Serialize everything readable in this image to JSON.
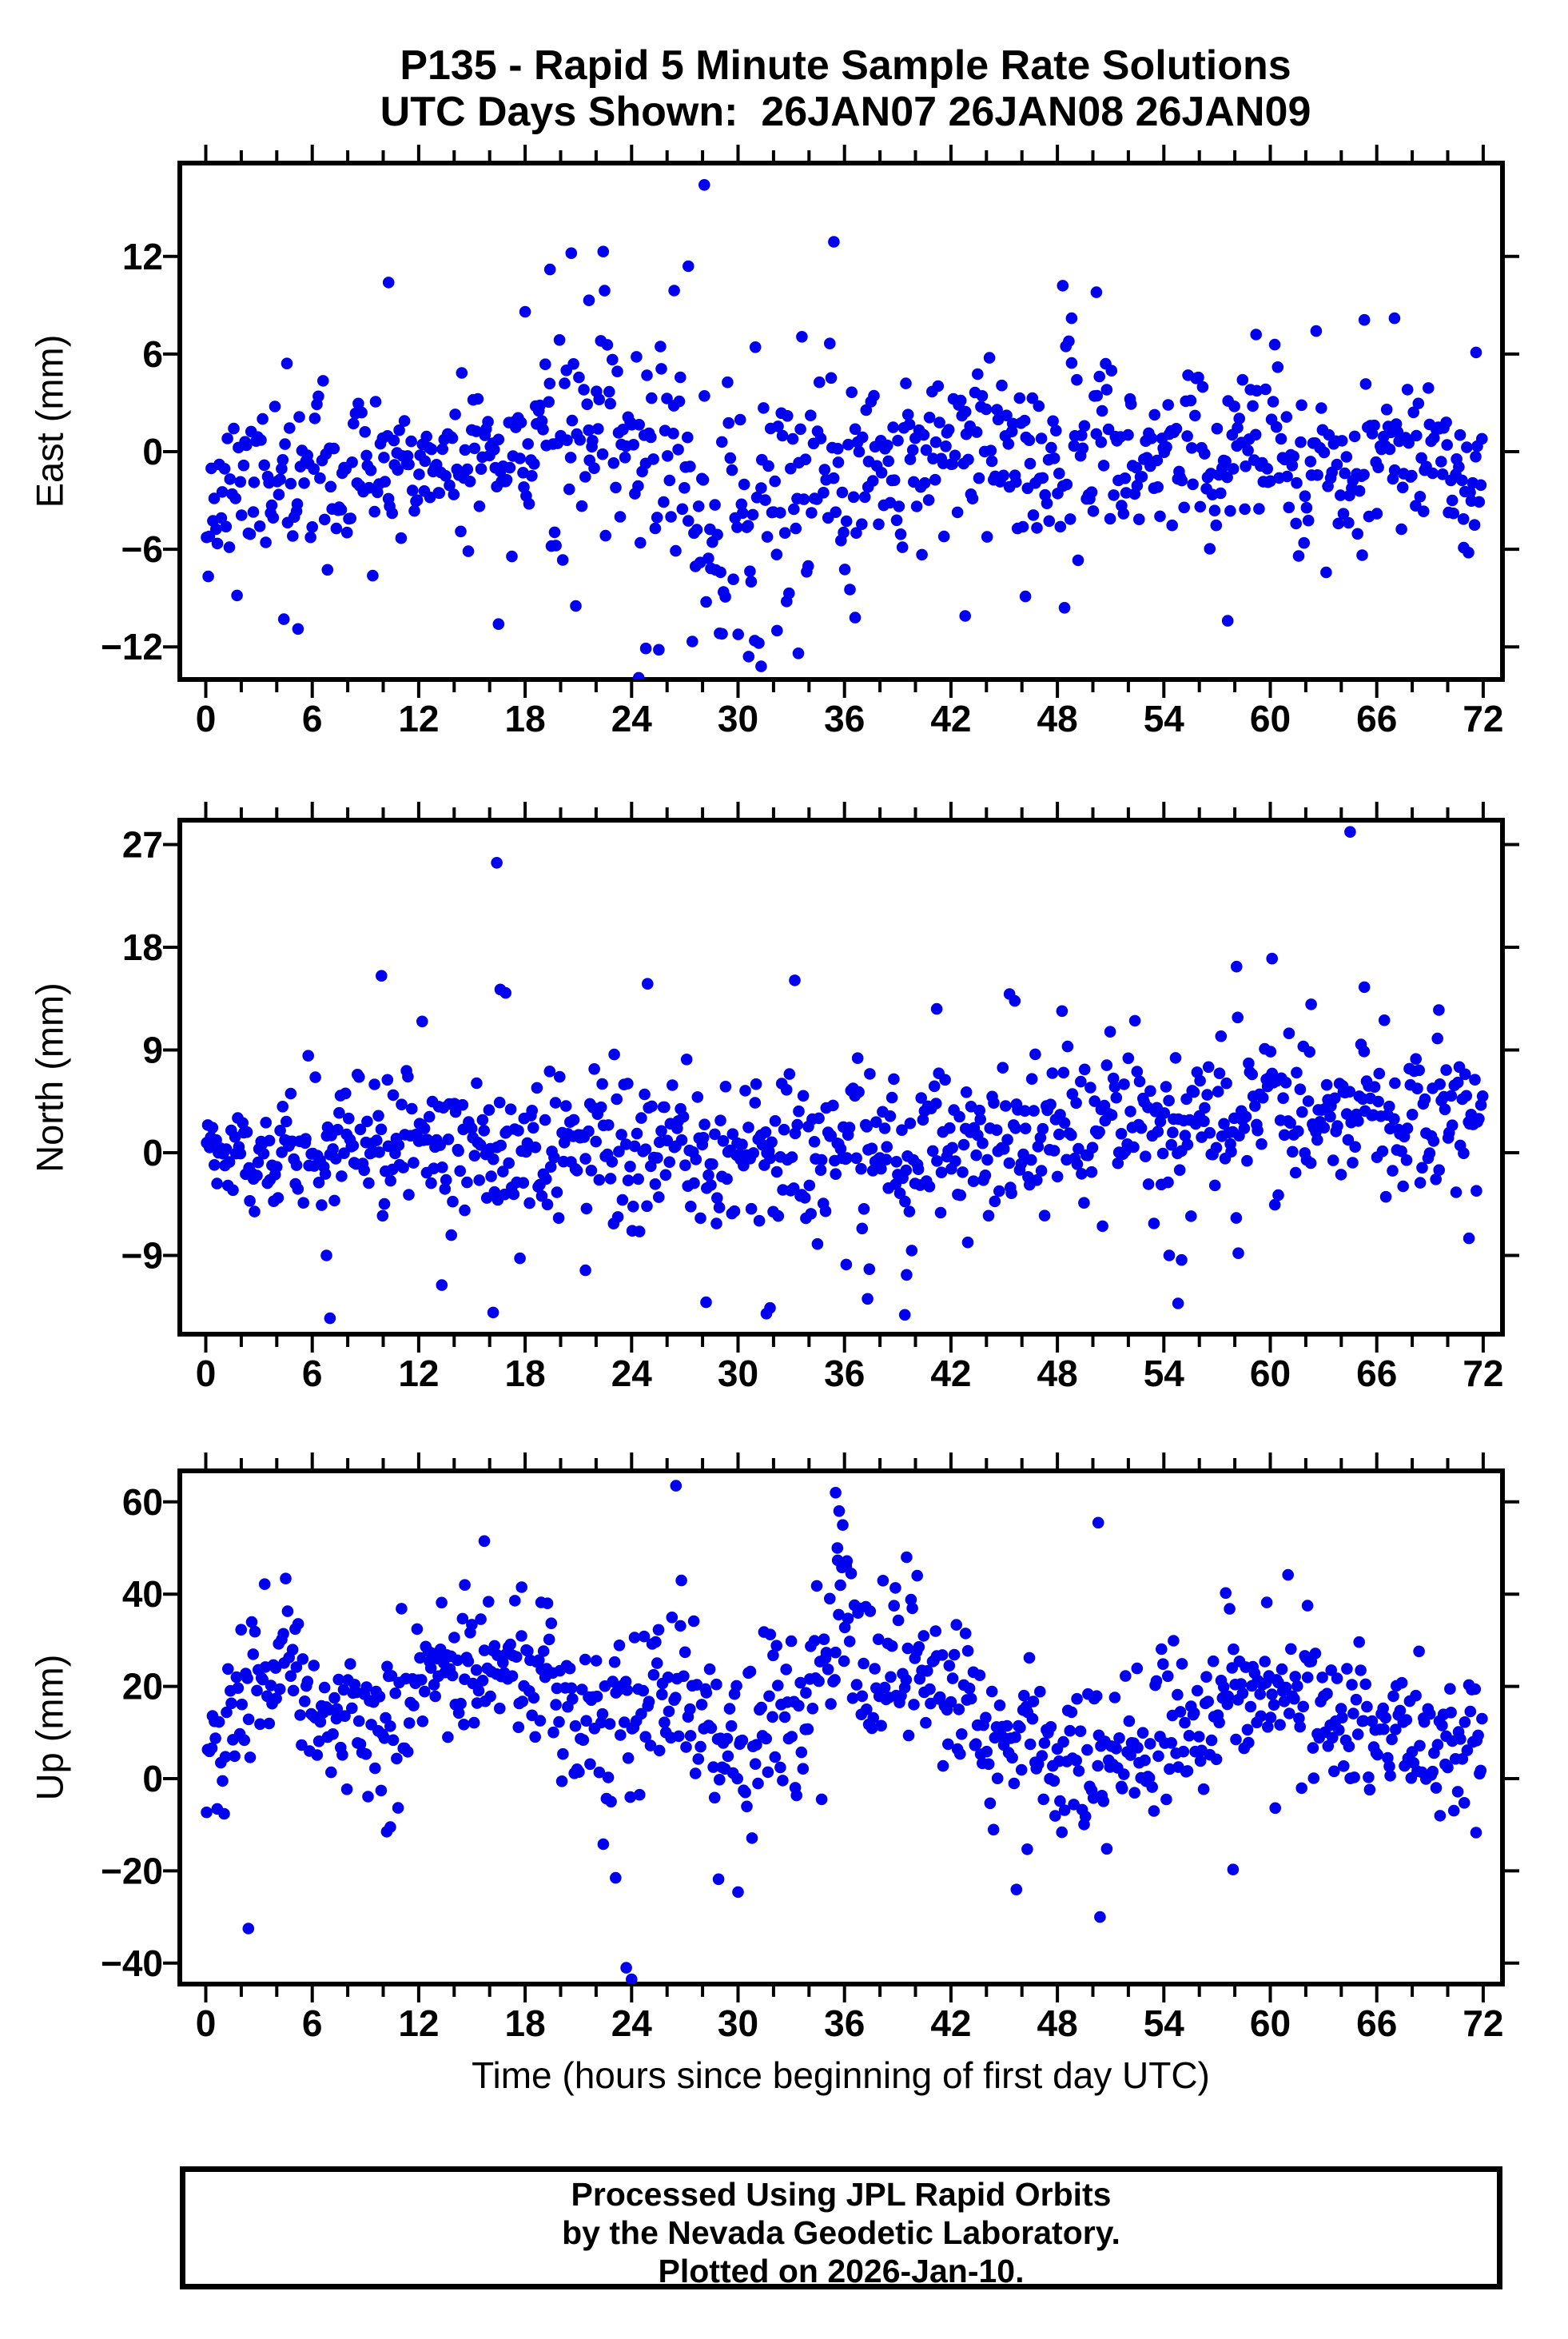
{
  "title": {
    "line1": "P135 - Rapid 5 Minute Sample Rate Solutions",
    "line2": "UTC Days Shown:  26JAN07 26JAN08 26JAN09"
  },
  "station": "P135",
  "utc_days_shown": [
    "26JAN07",
    "26JAN08",
    "26JAN09"
  ],
  "xaxis": {
    "label": "Time (hours since beginning of first day UTC)",
    "major_ticks": [
      0,
      6,
      12,
      18,
      24,
      30,
      36,
      42,
      48,
      54,
      60,
      66,
      72
    ],
    "major_step_hours": 6,
    "minor_step_hours": 2,
    "xlim_hours": [
      -1.4,
      73.1
    ]
  },
  "style": {
    "background": "#ffffff",
    "axis_color": "#000000",
    "dot_color": "#0101f0",
    "grid": "off",
    "legend": "none"
  },
  "footer": {
    "lines": [
      "Processed Using JPL Rapid Orbits",
      "by the Nevada Geodetic Laboratory.",
      "Plotted on 2026-Jan-10."
    ]
  },
  "chart_data": [
    {
      "panel": "east",
      "type": "scatter",
      "ylabel": "East (mm)",
      "ylim": [
        -14.0,
        17.7
      ],
      "yticks": [
        {
          "v": 12,
          "label": "12"
        },
        {
          "v": 6,
          "label": "6"
        },
        {
          "v": 0,
          "label": "0"
        },
        {
          "v": -6,
          "label": "−6"
        },
        {
          "v": -12,
          "label": "−12"
        }
      ],
      "marker": {
        "shape": "circle",
        "color": "#0101f0",
        "radius_px": 7.3
      },
      "n_points": 800,
      "seed": 11,
      "trend_mean_mm": [
        [
          0,
          -2.8
        ],
        [
          2,
          -2.0
        ],
        [
          4,
          -1.6
        ],
        [
          6,
          -1.6
        ],
        [
          8,
          -1.4
        ],
        [
          10,
          -1.2
        ],
        [
          12,
          -0.8
        ],
        [
          14,
          -1.2
        ],
        [
          16,
          -0.5
        ],
        [
          18,
          0.6
        ],
        [
          20,
          1.4
        ],
        [
          22,
          1.6
        ],
        [
          24,
          0.2
        ],
        [
          26,
          -1.0
        ],
        [
          28,
          -3.0
        ],
        [
          30,
          -4.4
        ],
        [
          32,
          -4.6
        ],
        [
          33,
          -3.0
        ],
        [
          34,
          -0.5
        ],
        [
          36,
          -0.6
        ],
        [
          38,
          -1.0
        ],
        [
          40,
          -0.6
        ],
        [
          42,
          -0.6
        ],
        [
          44,
          -0.2
        ],
        [
          46,
          -0.6
        ],
        [
          48,
          0.4
        ],
        [
          50,
          0.2
        ],
        [
          52,
          -0.4
        ],
        [
          54,
          -0.2
        ],
        [
          56,
          0.6
        ],
        [
          58,
          1.2
        ],
        [
          60,
          0.4
        ],
        [
          62,
          -0.6
        ],
        [
          64,
          -1.0
        ],
        [
          66,
          -0.4
        ],
        [
          68,
          -0.2
        ],
        [
          70,
          -0.6
        ],
        [
          72,
          -1.6
        ]
      ],
      "scatter_std_mm": [
        [
          0,
          2.6
        ],
        [
          6,
          2.6
        ],
        [
          12,
          2.4
        ],
        [
          18,
          2.9
        ],
        [
          21,
          3.4
        ],
        [
          24,
          3.4
        ],
        [
          27,
          4.2
        ],
        [
          30,
          4.0
        ],
        [
          33,
          3.4
        ],
        [
          36,
          3.2
        ],
        [
          40,
          2.6
        ],
        [
          44,
          2.6
        ],
        [
          48,
          3.0
        ],
        [
          52,
          2.6
        ],
        [
          56,
          2.7
        ],
        [
          60,
          2.8
        ],
        [
          64,
          2.6
        ],
        [
          68,
          2.2
        ],
        [
          72,
          2.2
        ]
      ],
      "outliers": [
        [
          28.1,
          16.4
        ],
        [
          27.2,
          11.4
        ],
        [
          26.4,
          9.9
        ],
        [
          35.4,
          12.9
        ],
        [
          22.4,
          12.3
        ],
        [
          20.6,
          12.2
        ],
        [
          19.4,
          11.2
        ],
        [
          21.6,
          9.3
        ],
        [
          10.3,
          10.4
        ],
        [
          18.0,
          8.6
        ],
        [
          48.3,
          10.2
        ],
        [
          50.2,
          9.8
        ],
        [
          48.8,
          8.2
        ],
        [
          65.3,
          8.1
        ],
        [
          67.0,
          8.2
        ],
        [
          59.2,
          7.2
        ],
        [
          71.6,
          6.1
        ],
        [
          24.4,
          -13.9
        ],
        [
          24.8,
          -12.1
        ],
        [
          30.6,
          -12.6
        ],
        [
          31.3,
          -13.2
        ],
        [
          33.4,
          -12.4
        ],
        [
          29.1,
          -11.2
        ],
        [
          32.2,
          -11.0
        ],
        [
          36.6,
          -10.2
        ],
        [
          4.4,
          -10.3
        ],
        [
          5.2,
          -10.9
        ],
        [
          16.5,
          -10.6
        ],
        [
          42.8,
          -10.1
        ],
        [
          57.6,
          -10.4
        ],
        [
          46.2,
          -8.9
        ],
        [
          70.9,
          -5.9
        ]
      ]
    },
    {
      "panel": "north",
      "type": "scatter",
      "ylabel": "North (mm)",
      "ylim": [
        -15.9,
        29.1
      ],
      "yticks": [
        {
          "v": 27,
          "label": "27"
        },
        {
          "v": 18,
          "label": "18"
        },
        {
          "v": 9,
          "label": "9"
        },
        {
          "v": 0,
          "label": "0"
        },
        {
          "v": -9,
          "label": "−9"
        }
      ],
      "marker": {
        "shape": "circle",
        "color": "#0101f0",
        "radius_px": 7.3
      },
      "n_points": 820,
      "seed": 22,
      "trend_mean_mm": [
        [
          0,
          0.6
        ],
        [
          3,
          0.3
        ],
        [
          6,
          -0.2
        ],
        [
          9,
          0.4
        ],
        [
          12,
          0.4
        ],
        [
          15,
          0.6
        ],
        [
          18,
          1.2
        ],
        [
          21,
          1.2
        ],
        [
          24,
          0.6
        ],
        [
          27,
          0.4
        ],
        [
          30,
          -0.4
        ],
        [
          33,
          -0.2
        ],
        [
          36,
          0.0
        ],
        [
          39,
          0.6
        ],
        [
          42,
          1.2
        ],
        [
          45,
          1.4
        ],
        [
          48,
          1.8
        ],
        [
          51,
          2.4
        ],
        [
          54,
          2.6
        ],
        [
          57,
          3.2
        ],
        [
          60,
          3.4
        ],
        [
          63,
          3.2
        ],
        [
          66,
          3.4
        ],
        [
          69,
          3.0
        ],
        [
          72,
          2.6
        ]
      ],
      "scatter_std_mm": [
        [
          0,
          2.4
        ],
        [
          6,
          3.2
        ],
        [
          12,
          3.0
        ],
        [
          18,
          3.6
        ],
        [
          24,
          3.3
        ],
        [
          30,
          3.6
        ],
        [
          36,
          3.3
        ],
        [
          42,
          3.6
        ],
        [
          48,
          3.4
        ],
        [
          54,
          3.6
        ],
        [
          60,
          3.6
        ],
        [
          66,
          3.2
        ],
        [
          72,
          3.0
        ]
      ],
      "outliers": [
        [
          16.4,
          25.4
        ],
        [
          64.5,
          28.1
        ],
        [
          9.9,
          15.5
        ],
        [
          16.6,
          14.3
        ],
        [
          16.9,
          14.0
        ],
        [
          24.9,
          14.8
        ],
        [
          33.2,
          15.1
        ],
        [
          58.1,
          16.3
        ],
        [
          60.1,
          17.0
        ],
        [
          65.3,
          14.5
        ],
        [
          45.3,
          13.9
        ],
        [
          45.6,
          13.3
        ],
        [
          69.5,
          12.5
        ],
        [
          62.3,
          13.0
        ],
        [
          12.2,
          11.5
        ],
        [
          41.2,
          12.6
        ],
        [
          7.0,
          -14.5
        ],
        [
          31.6,
          -14.1
        ],
        [
          31.8,
          -13.6
        ],
        [
          28.2,
          -13.1
        ],
        [
          16.2,
          -14.0
        ],
        [
          13.3,
          -11.6
        ],
        [
          54.8,
          -13.2
        ],
        [
          55.0,
          -9.4
        ],
        [
          54.3,
          -9.0
        ],
        [
          39.4,
          -14.2
        ],
        [
          37.3,
          -12.8
        ],
        [
          39.5,
          -10.7
        ],
        [
          37.4,
          -10.2
        ],
        [
          58.2,
          -8.8
        ],
        [
          6.8,
          -9.0
        ],
        [
          21.4,
          -10.3
        ],
        [
          71.2,
          -7.5
        ],
        [
          36.1,
          -9.8
        ]
      ]
    },
    {
      "panel": "up",
      "type": "scatter",
      "ylabel": "Up (mm)",
      "ylim": [
        -44.5,
        66.7
      ],
      "yticks": [
        {
          "v": 60,
          "label": "60"
        },
        {
          "v": 40,
          "label": "40"
        },
        {
          "v": 20,
          "label": "20"
        },
        {
          "v": 0,
          "label": "0"
        },
        {
          "v": -20,
          "label": "−20"
        },
        {
          "v": -40,
          "label": "−40"
        }
      ],
      "marker": {
        "shape": "circle",
        "color": "#0101f0",
        "radius_px": 7.3
      },
      "n_points": 820,
      "seed": 33,
      "trend_mean_mm": [
        [
          0,
          2
        ],
        [
          1,
          8
        ],
        [
          2,
          13
        ],
        [
          3,
          20
        ],
        [
          4,
          24
        ],
        [
          5,
          22
        ],
        [
          6,
          17
        ],
        [
          7,
          14
        ],
        [
          8,
          12
        ],
        [
          9,
          14
        ],
        [
          10,
          15
        ],
        [
          11,
          16
        ],
        [
          12,
          19
        ],
        [
          13,
          21
        ],
        [
          14,
          22
        ],
        [
          15,
          23
        ],
        [
          16,
          22
        ],
        [
          18,
          21
        ],
        [
          20,
          17
        ],
        [
          21,
          14
        ],
        [
          22,
          12
        ],
        [
          23,
          11
        ],
        [
          24,
          12
        ],
        [
          25,
          14
        ],
        [
          26,
          17
        ],
        [
          27,
          14
        ],
        [
          28,
          11
        ],
        [
          29,
          10
        ],
        [
          30,
          11
        ],
        [
          32,
          13
        ],
        [
          34,
          17
        ],
        [
          35,
          26
        ],
        [
          35.7,
          40
        ],
        [
          36.3,
          34
        ],
        [
          37,
          25
        ],
        [
          38,
          21
        ],
        [
          39,
          25
        ],
        [
          40,
          26
        ],
        [
          41,
          23
        ],
        [
          42,
          19
        ],
        [
          43,
          16
        ],
        [
          44,
          13
        ],
        [
          45,
          10
        ],
        [
          46,
          7
        ],
        [
          47,
          5
        ],
        [
          48,
          4
        ],
        [
          49,
          3
        ],
        [
          50,
          3
        ],
        [
          51,
          4
        ],
        [
          52,
          4
        ],
        [
          53,
          6
        ],
        [
          54,
          8
        ],
        [
          55,
          11
        ],
        [
          56,
          14
        ],
        [
          57,
          17
        ],
        [
          58,
          19
        ],
        [
          59,
          21
        ],
        [
          60,
          21
        ],
        [
          61,
          20
        ],
        [
          62,
          18
        ],
        [
          63,
          15
        ],
        [
          64,
          13
        ],
        [
          65,
          12
        ],
        [
          66,
          11
        ],
        [
          67,
          10
        ],
        [
          68,
          9
        ],
        [
          69,
          8
        ],
        [
          70,
          8
        ],
        [
          71,
          10
        ],
        [
          72,
          13
        ]
      ],
      "scatter_std_mm": [
        [
          0,
          8
        ],
        [
          2,
          9
        ],
        [
          4,
          7
        ],
        [
          12,
          7
        ],
        [
          16,
          7
        ],
        [
          20,
          8
        ],
        [
          24,
          9
        ],
        [
          28,
          8
        ],
        [
          34,
          9
        ],
        [
          36,
          10
        ],
        [
          40,
          8
        ],
        [
          46,
          8
        ],
        [
          50,
          8
        ],
        [
          56,
          8
        ],
        [
          62,
          8
        ],
        [
          66,
          7
        ],
        [
          72,
          7
        ]
      ],
      "outliers": [
        [
          26.5,
          63.5
        ],
        [
          35.5,
          62.0
        ],
        [
          35.7,
          58.0
        ],
        [
          35.9,
          55.0
        ],
        [
          35.6,
          50.0
        ],
        [
          36.1,
          46.0
        ],
        [
          15.7,
          51.5
        ],
        [
          14.6,
          42.0
        ],
        [
          17.8,
          41.5
        ],
        [
          18.9,
          38.2
        ],
        [
          50.3,
          55.5
        ],
        [
          39.5,
          48.0
        ],
        [
          40.1,
          44.0
        ],
        [
          59.8,
          38.2
        ],
        [
          62.1,
          37.5
        ],
        [
          2.4,
          -32.5
        ],
        [
          23.7,
          -41.0
        ],
        [
          24.0,
          -43.5
        ],
        [
          23.1,
          -21.5
        ],
        [
          28.9,
          -21.8
        ],
        [
          30.0,
          -24.6
        ],
        [
          50.4,
          -30.0
        ],
        [
          46.3,
          -15.3
        ],
        [
          57.9,
          -19.7
        ],
        [
          71.6,
          -11.7
        ],
        [
          10.2,
          -11.5
        ],
        [
          10.4,
          -10.5
        ]
      ]
    }
  ]
}
